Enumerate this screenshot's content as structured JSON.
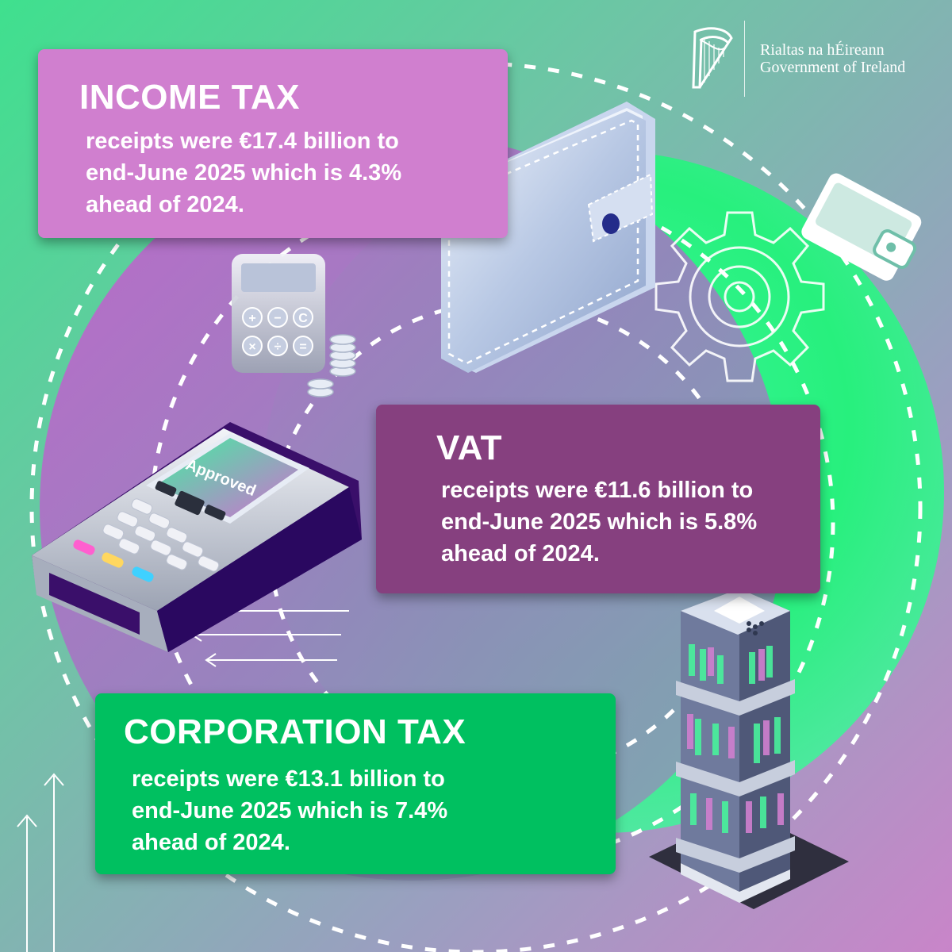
{
  "colors": {
    "income_card": "#d07fcf",
    "vat_card": "#86407f",
    "corporation_card": "#00c060",
    "bright_green": "#2af27e",
    "magenta": "#c46fc4"
  },
  "branding": {
    "logo_icon": "harp-icon",
    "line1": "Rialtas na hÉireann",
    "line2": "Government of Ireland"
  },
  "cards": {
    "income_tax": {
      "heading": "INCOME TAX",
      "lines": [
        "receipts were €17.4 billion to",
        "end-June 2025 which is 4.3%",
        "ahead of 2024."
      ]
    },
    "vat": {
      "heading": "VAT",
      "lines": [
        "receipts were €11.6 billion to",
        "end-June 2025 which is 5.8%",
        "ahead of 2024."
      ]
    },
    "corporation_tax": {
      "heading": "CORPORATION TAX",
      "lines": [
        "receipts were €13.1 billion to",
        "end-June 2025 which is 7.4%",
        "ahead of 2024."
      ]
    }
  },
  "illustrations": {
    "terminal_screen_text": "Approved",
    "calculator_keys": [
      "+",
      "−",
      "C",
      "×",
      "÷",
      "="
    ],
    "icons": [
      "wallet-icon",
      "gear-icon",
      "calculator-icon",
      "coins-icon",
      "card-terminal-icon",
      "office-tower-icon",
      "wallet-outline-icon",
      "arrow-up-icon"
    ]
  }
}
